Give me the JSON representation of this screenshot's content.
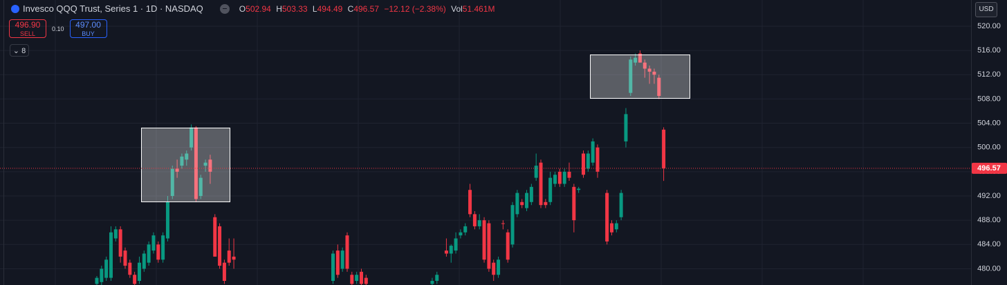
{
  "header": {
    "symbol": "Invesco QQQ Trust, Series 1 · 1D · NASDAQ",
    "o": "O",
    "h": "H",
    "l": "L",
    "c": "C",
    "change": "−12.12 (−2.38%)",
    "vol_label": "Vol",
    "vol": "51.461M",
    "sell_price": "496.90",
    "sell": "SELL",
    "spread": "0.10",
    "buy_price": "497.00",
    "buy": "BUY",
    "indicator_count": "8",
    "currency": "USD"
  },
  "chart_data": {
    "type": "candlestick",
    "up_color": "#089981",
    "down_color": "#f23645",
    "last_line_color": "#f23645",
    "grid": true,
    "ylim": [
      477.32,
      524.32
    ],
    "yticks": [
      {
        "value": 480,
        "label": "480.00"
      },
      {
        "value": 484,
        "label": "484.00"
      },
      {
        "value": 488,
        "label": "488.00"
      },
      {
        "value": 492,
        "label": "492.00"
      },
      {
        "value": 496,
        "label": "496.00"
      },
      {
        "value": 500,
        "label": "500.00"
      },
      {
        "value": 504,
        "label": "504.00"
      },
      {
        "value": 508,
        "label": "508.00"
      },
      {
        "value": 512,
        "label": "512.00"
      },
      {
        "value": 516,
        "label": "516.00"
      },
      {
        "value": 520,
        "label": "520.00"
      }
    ],
    "candles": [
      {
        "open": 477.5,
        "high": 478.8,
        "low": 477.3,
        "close": 478.5
      },
      {
        "open": 477.8,
        "high": 480.5,
        "low": 477.3,
        "close": 480
      },
      {
        "open": 478.5,
        "high": 482,
        "low": 478,
        "close": 481.5
      },
      {
        "open": 478.5,
        "high": 487,
        "low": 478,
        "close": 486
      },
      {
        "open": 485,
        "high": 487,
        "low": 484.5,
        "close": 486.5
      },
      {
        "open": 486.5,
        "high": 487,
        "low": 481,
        "close": 482
      },
      {
        "open": 483,
        "high": 483.5,
        "low": 480,
        "close": 480.5
      },
      {
        "open": 481,
        "high": 481.5,
        "low": 478.5,
        "close": 479
      },
      {
        "open": 479,
        "high": 479.5,
        "low": 477.3,
        "close": 477.5
      },
      {
        "open": 478,
        "high": 482,
        "low": 477.5,
        "close": 481
      },
      {
        "open": 480,
        "high": 483,
        "low": 479.5,
        "close": 482.5
      },
      {
        "open": 481,
        "high": 484.5,
        "low": 480.5,
        "close": 484
      },
      {
        "open": 483,
        "high": 486,
        "low": 482.5,
        "close": 485.5
      },
      {
        "open": 484,
        "high": 484.5,
        "low": 481,
        "close": 481.5
      },
      {
        "open": 481.5,
        "high": 486,
        "low": 481,
        "close": 485.5
      },
      {
        "open": 485,
        "high": 492,
        "low": 484.5,
        "close": 491
      },
      {
        "open": 492,
        "high": 497,
        "low": 491.5,
        "close": 496.5
      },
      {
        "open": 496.5,
        "high": 498,
        "low": 495,
        "close": 496
      },
      {
        "open": 497,
        "high": 499,
        "low": 496.5,
        "close": 498.5
      },
      {
        "open": 498,
        "high": 499.5,
        "low": 497,
        "close": 499
      },
      {
        "open": 500,
        "high": 503.8,
        "low": 499.5,
        "close": 503.3
      },
      {
        "open": 503.3,
        "high": 503.5,
        "low": 491,
        "close": 491.5
      },
      {
        "open": 492,
        "high": 495.5,
        "low": 491.5,
        "close": 495
      },
      {
        "open": 497,
        "high": 498,
        "low": 496,
        "close": 497.5
      },
      {
        "open": 498,
        "high": 498.8,
        "low": 494,
        "close": 496
      },
      {
        "open": 488.5,
        "high": 489,
        "low": 482,
        "close": 482
      },
      {
        "open": 487,
        "high": 487.5,
        "low": 480,
        "close": 480.5
      },
      {
        "open": 481,
        "high": 481.5,
        "low": 477.5,
        "close": 478
      },
      {
        "open": 483,
        "high": 485,
        "low": 480.5,
        "close": 481
      },
      {
        "open": 482,
        "high": 485,
        "low": 480,
        "close": 481.5
      },
      null,
      null,
      null,
      null,
      null,
      null,
      null,
      null,
      null,
      null,
      null,
      null,
      null,
      null,
      null,
      null,
      null,
      null,
      null,
      null,
      {
        "open": 478,
        "high": 483,
        "low": 477.5,
        "close": 482.5
      },
      {
        "open": 483,
        "high": 484,
        "low": 478.5,
        "close": 479
      },
      {
        "open": 480,
        "high": 483.5,
        "low": 479.5,
        "close": 483
      },
      {
        "open": 485.5,
        "high": 486,
        "low": 479.5,
        "close": 480
      },
      {
        "open": 479,
        "high": 479.5,
        "low": 477.3,
        "close": 477.5
      },
      {
        "open": 478,
        "high": 479.5,
        "low": 477.5,
        "close": 479
      },
      {
        "open": 479.5,
        "high": 480,
        "low": 477.3,
        "close": 477.5
      },
      {
        "open": 478.5,
        "high": 479,
        "low": 477.3,
        "close": 477.5
      },
      null,
      null,
      null,
      null,
      null,
      null,
      null,
      null,
      null,
      null,
      null,
      null,
      null,
      {
        "open": 477.5,
        "high": 478.5,
        "low": 477.3,
        "close": 478
      },
      {
        "open": 478,
        "high": 479.5,
        "low": 477.5,
        "close": 479
      },
      null,
      {
        "open": 483,
        "high": 485,
        "low": 482,
        "close": 482.5
      },
      {
        "open": 482.5,
        "high": 484,
        "low": 481,
        "close": 483.8
      },
      {
        "open": 483,
        "high": 486,
        "low": 482.5,
        "close": 485
      },
      {
        "open": 485.5,
        "high": 486.5,
        "low": 485,
        "close": 486
      },
      {
        "open": 486,
        "high": 487.5,
        "low": 485.5,
        "close": 487
      },
      {
        "open": 493,
        "high": 494,
        "low": 488.5,
        "close": 489
      },
      {
        "open": 489,
        "high": 489.5,
        "low": 486.5,
        "close": 487
      },
      {
        "open": 487,
        "high": 489,
        "low": 486.5,
        "close": 488
      },
      {
        "open": 488,
        "high": 488.5,
        "low": 481,
        "close": 481.5
      },
      {
        "open": 487.5,
        "high": 488,
        "low": 479.5,
        "close": 480
      },
      {
        "open": 481,
        "high": 481.5,
        "low": 478,
        "close": 479
      },
      {
        "open": 479,
        "high": 482,
        "low": 478.5,
        "close": 481.5
      },
      {
        "open": 487.5,
        "high": 488,
        "low": 486.5,
        "close": 487.4
      },
      {
        "open": 486,
        "high": 486.5,
        "low": 481,
        "close": 481.5
      },
      {
        "open": 484,
        "high": 491,
        "low": 483.5,
        "close": 490.5
      },
      {
        "open": 489,
        "high": 493,
        "low": 488.5,
        "close": 492.5
      },
      {
        "open": 491,
        "high": 491.5,
        "low": 490,
        "close": 490.5
      },
      {
        "open": 490,
        "high": 493,
        "low": 489.5,
        "close": 492.5
      },
      {
        "open": 491,
        "high": 494,
        "low": 490.5,
        "close": 493.5
      },
      {
        "open": 495,
        "high": 499,
        "low": 494.5,
        "close": 497
      },
      {
        "open": 497.5,
        "high": 498,
        "low": 490,
        "close": 490.5
      },
      {
        "open": 491,
        "high": 491.5,
        "low": 490,
        "close": 490.5
      },
      {
        "open": 491,
        "high": 496,
        "low": 490.5,
        "close": 495
      },
      {
        "open": 494,
        "high": 496,
        "low": 493.5,
        "close": 495.5
      },
      {
        "open": 496,
        "high": 496.5,
        "low": 493.5,
        "close": 494
      },
      {
        "open": 494,
        "high": 496.5,
        "low": 493.5,
        "close": 496
      },
      {
        "open": 496,
        "high": 497.5,
        "low": 494.5,
        "close": 495
      },
      {
        "open": 493.5,
        "high": 494,
        "low": 486,
        "close": 488
      },
      {
        "open": 493,
        "high": 493.5,
        "low": 492.5,
        "close": 493.2
      },
      {
        "open": 499,
        "high": 499.5,
        "low": 495,
        "close": 495.5
      },
      {
        "open": 496.5,
        "high": 499.5,
        "low": 496,
        "close": 499
      },
      {
        "open": 497.5,
        "high": 501.5,
        "low": 497,
        "close": 501
      },
      {
        "open": 500,
        "high": 500.5,
        "low": 495,
        "close": 496
      },
      null,
      {
        "open": 492.5,
        "high": 493,
        "low": 484,
        "close": 484.5
      },
      {
        "open": 487.5,
        "high": 488,
        "low": 485.5,
        "close": 486
      },
      {
        "open": 486.5,
        "high": 488,
        "low": 486,
        "close": 487.5
      },
      {
        "open": 488.5,
        "high": 493,
        "low": 488,
        "close": 492.5
      },
      {
        "open": 501,
        "high": 506.5,
        "low": 500,
        "close": 505.5
      },
      {
        "open": 509,
        "high": 515,
        "low": 508.5,
        "close": 514.5
      },
      {
        "open": 514,
        "high": 515.5,
        "low": 513.5,
        "close": 514.8
      },
      {
        "open": 515.5,
        "high": 516,
        "low": 514,
        "close": 514
      },
      {
        "open": 514,
        "high": 514.5,
        "low": 511.5,
        "close": 513
      },
      {
        "open": 513,
        "high": 513.5,
        "low": 510.5,
        "close": 512.5
      },
      {
        "open": 512.5,
        "high": 513,
        "low": 510.5,
        "close": 512
      },
      {
        "open": 511.5,
        "high": 512,
        "low": 508,
        "close": 508.5
      },
      {
        "open": 502.94,
        "high": 503.33,
        "low": 494.49,
        "close": 496.57
      }
    ]
  }
}
